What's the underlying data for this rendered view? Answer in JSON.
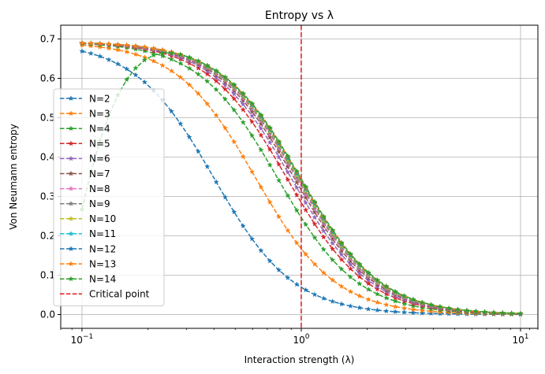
{
  "chart_data": {
    "type": "line",
    "title": "Entropy vs λ",
    "xlabel": "Interaction strength (λ)",
    "ylabel": "Von Neumann entropy",
    "xscale": "log",
    "xlim": [
      0.08,
      12
    ],
    "ylim": [
      -0.035,
      0.735
    ],
    "xticks": [
      {
        "value": 0.1,
        "base": "10",
        "exp": "−1"
      },
      {
        "value": 1,
        "base": "10",
        "exp": "0"
      },
      {
        "value": 10,
        "base": "10",
        "exp": "1"
      }
    ],
    "yticks": [
      0.0,
      0.1,
      0.2,
      0.3,
      0.4,
      0.5,
      0.6,
      0.7
    ],
    "ytick_labels": [
      "0.0",
      "0.1",
      "0.2",
      "0.3",
      "0.4",
      "0.5",
      "0.6",
      "0.7"
    ],
    "grid": true,
    "legend_position": "lower-left",
    "critical_point": {
      "x": 1.0,
      "label": "Critical point",
      "color": "#e31a1c"
    },
    "sample_x_range": [
      0.1,
      10
    ],
    "sample_count": 50,
    "series": [
      {
        "name": "N=2",
        "color": "#1f77b4",
        "y_at_min": 0.673,
        "plateau": 0.693,
        "half_point": 0.4
      },
      {
        "name": "N=3",
        "color": "#ff7f0e",
        "y_at_min": 0.69,
        "plateau": 0.693,
        "half_point": 0.62
      },
      {
        "name": "N=4",
        "color": "#2ca02c",
        "y_at_min": 0.693,
        "plateau": 0.693,
        "half_point": 0.78
      },
      {
        "name": "N=5",
        "color": "#d62728",
        "y_at_min": 0.693,
        "plateau": 0.693,
        "half_point": 0.86
      },
      {
        "name": "N=6",
        "color": "#9467bd",
        "y_at_min": 0.693,
        "plateau": 0.693,
        "half_point": 0.9
      },
      {
        "name": "N=7",
        "color": "#8c564b",
        "y_at_min": 0.693,
        "plateau": 0.693,
        "half_point": 0.93
      },
      {
        "name": "N=8",
        "color": "#e377c2",
        "y_at_min": 0.693,
        "plateau": 0.693,
        "half_point": 0.95
      },
      {
        "name": "N=9",
        "color": "#7f7f7f",
        "y_at_min": 0.693,
        "plateau": 0.693,
        "half_point": 0.96
      },
      {
        "name": "N=10",
        "color": "#bcbd22",
        "y_at_min": 0.693,
        "plateau": 0.693,
        "half_point": 0.97
      },
      {
        "name": "N=11",
        "color": "#17becf",
        "y_at_min": 0.693,
        "plateau": 0.693,
        "half_point": 0.98
      },
      {
        "name": "N=12",
        "color": "#1f77b4",
        "y_at_min": 0.693,
        "plateau": 0.693,
        "half_point": 0.985
      },
      {
        "name": "N=13",
        "color": "#ff7f0e",
        "y_at_min": 0.693,
        "plateau": 0.693,
        "half_point": 0.99
      },
      {
        "name": "N=14",
        "color": "#2ca02c",
        "y_at_min": 0.27,
        "plateau": 0.693,
        "half_point": 0.995
      }
    ]
  }
}
